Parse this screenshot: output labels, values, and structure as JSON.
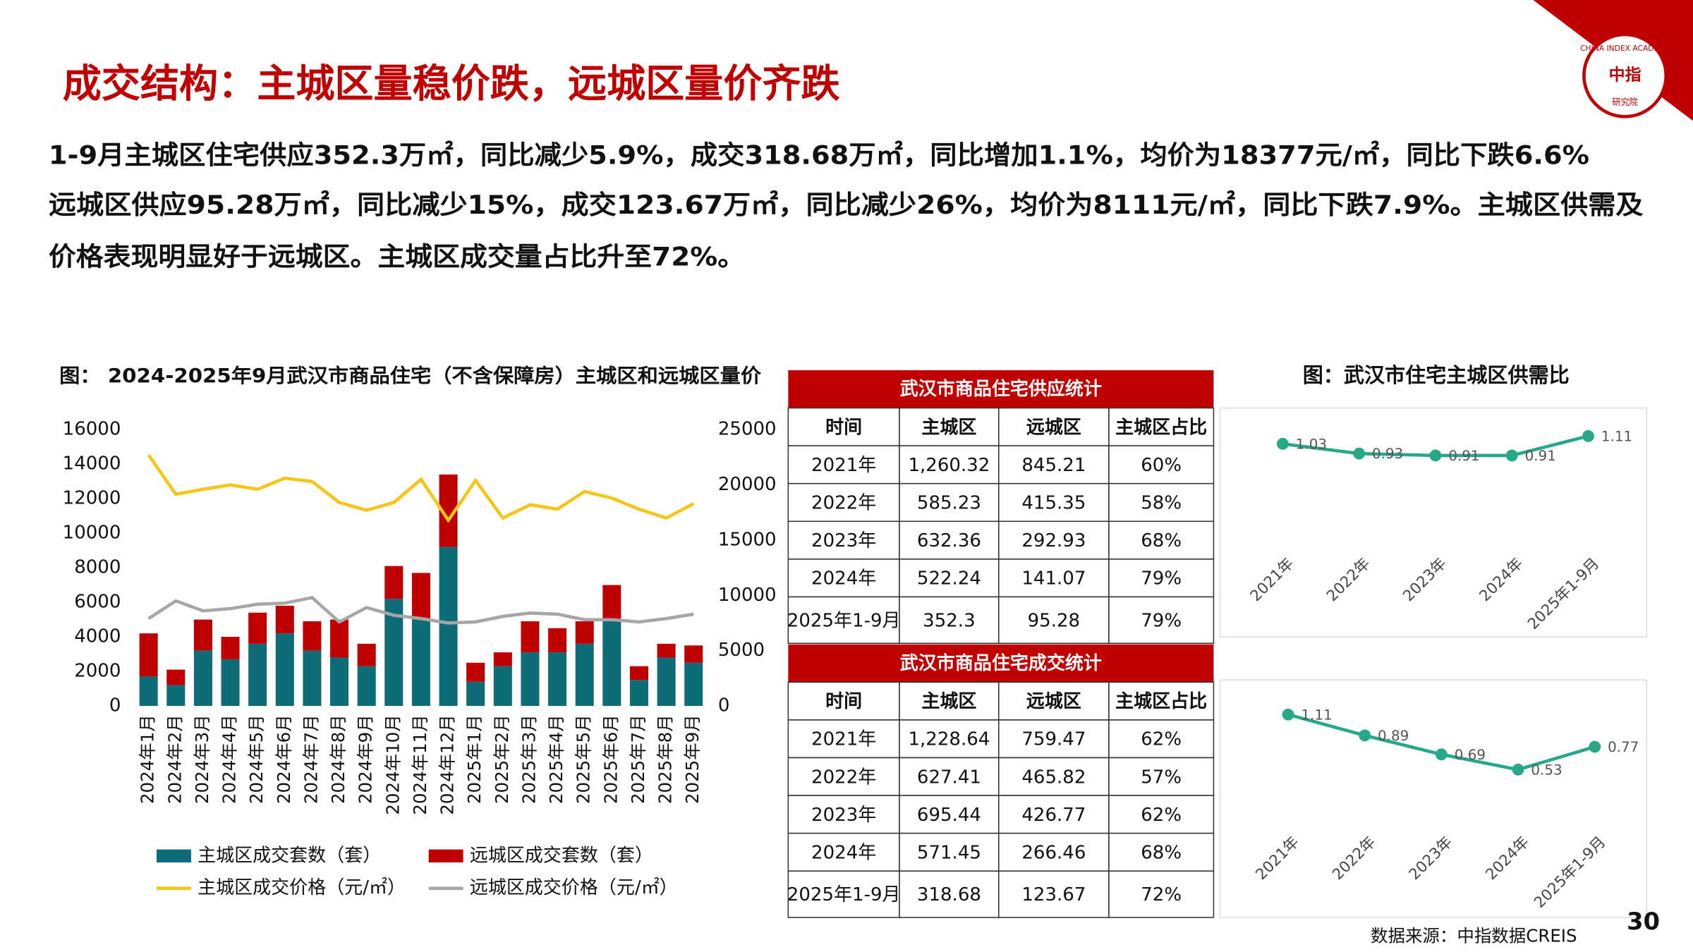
{
  "header": {
    "title": "成交结构：主城区量稳价跌，远城区量价齐跌",
    "logo": {
      "name": "CHINA INDEX ACADEMY",
      "mark": "中指",
      "sub": "研究院"
    }
  },
  "paragraph": [
    "1-9月主城区住宅供应352.3万㎡，同比减少5.9%，成交318.68万㎡，同比增加1.1%，均价为18377元/㎡，同比下跌6.6%",
    "远城区供应95.28万㎡，同比减少15%，成交123.67万㎡，同比减少26%，均价为8111元/㎡，同比下跌7.9%。主城区供需及",
    "价格表现明显好于远城区。主城区成交量占比升至72%。"
  ],
  "chart_data": [
    {
      "type": "bar",
      "stacked": true,
      "title": "图： 2024-2025年9月武汉市商品住宅（不含保障房）主城区和远城区量价",
      "categories": [
        "2024年1月",
        "2024年2月",
        "2024年3月",
        "2024年4月",
        "2024年5月",
        "2024年6月",
        "2024年7月",
        "2024年8月",
        "2024年9月",
        "2024年10月",
        "2024年11月",
        "2024年12月",
        "2025年1月",
        "2025年2月",
        "2025年3月",
        "2025年4月",
        "2025年5月",
        "2025年6月",
        "2025年7月",
        "2025年8月",
        "2025年9月"
      ],
      "series": [
        {
          "name": "主城区成交套数（套）",
          "color": "#0e6b78",
          "values": [
            1700,
            1200,
            3200,
            2700,
            3600,
            4200,
            3200,
            2800,
            2300,
            6200,
            5000,
            9200,
            1400,
            2300,
            3100,
            3100,
            3600,
            5000,
            1500,
            2800,
            2500
          ]
        },
        {
          "name": "远城区成交套数（套）",
          "color": "#c00000",
          "values": [
            2500,
            900,
            1800,
            1300,
            1800,
            1600,
            1700,
            2200,
            1300,
            1900,
            2700,
            4200,
            1100,
            800,
            1800,
            1400,
            1300,
            2000,
            800,
            800,
            1000
          ]
        },
        {
          "name": "主城区成交价格（元/㎡）",
          "type": "line",
          "axis": "y2",
          "color": "#f5c518",
          "values": [
            22700,
            19150,
            19600,
            20000,
            19600,
            20600,
            20300,
            18400,
            17700,
            18400,
            20500,
            16800,
            20400,
            17000,
            18200,
            17800,
            19400,
            18800,
            17800,
            17000,
            18300
          ]
        },
        {
          "name": "远城区成交价格（元/㎡）",
          "type": "line",
          "axis": "y2",
          "color": "#a6a6a6",
          "values": [
            7900,
            9500,
            8600,
            8800,
            9200,
            9300,
            9800,
            7600,
            8900,
            8200,
            7900,
            7500,
            7600,
            8100,
            8400,
            8300,
            7800,
            7800,
            7600,
            7900,
            8300
          ]
        }
      ],
      "ylim": [
        0,
        16000
      ],
      "yticks": [
        0,
        2000,
        4000,
        6000,
        8000,
        10000,
        12000,
        14000,
        16000
      ],
      "y2lim": [
        0,
        25000
      ],
      "y2ticks": [
        0,
        5000,
        10000,
        15000,
        20000,
        25000
      ]
    },
    {
      "type": "line",
      "title": "图：武汉市住宅主城区供需比",
      "categories": [
        "2021年",
        "2022年",
        "2023年",
        "2024年",
        "2025年1-9月"
      ],
      "values": [
        1.03,
        0.93,
        0.91,
        0.91,
        1.11
      ],
      "color": "#26a889"
    },
    {
      "type": "line",
      "categories": [
        "2021年",
        "2022年",
        "2023年",
        "2024年",
        "2025年1-9月"
      ],
      "values": [
        1.11,
        0.89,
        0.69,
        0.53,
        0.77
      ],
      "color": "#26a889"
    }
  ],
  "tables": [
    {
      "title": "武汉市商品住宅供应统计",
      "header": [
        "时间",
        "主城区",
        "远城区",
        "主城区占比"
      ],
      "rows": [
        [
          "2021年",
          "1,260.32",
          "845.21",
          "60%"
        ],
        [
          "2022年",
          "585.23",
          "415.35",
          "58%"
        ],
        [
          "2023年",
          "632.36",
          "292.93",
          "68%"
        ],
        [
          "2024年",
          "522.24",
          "141.07",
          "79%"
        ],
        [
          "2025年1-9月",
          "352.3",
          "95.28",
          "79%"
        ]
      ]
    },
    {
      "title": "武汉市商品住宅成交统计",
      "header": [
        "时间",
        "主城区",
        "远城区",
        "主城区占比"
      ],
      "rows": [
        [
          "2021年",
          "1,228.64",
          "759.47",
          "62%"
        ],
        [
          "2022年",
          "627.41",
          "465.82",
          "57%"
        ],
        [
          "2023年",
          "695.44",
          "426.77",
          "62%"
        ],
        [
          "2024年",
          "571.45",
          "266.46",
          "68%"
        ],
        [
          "2025年1-9月",
          "318.68",
          "123.67",
          "72%"
        ]
      ]
    }
  ],
  "footer": {
    "source": "数据来源：中指数据CREIS",
    "page": "30"
  }
}
